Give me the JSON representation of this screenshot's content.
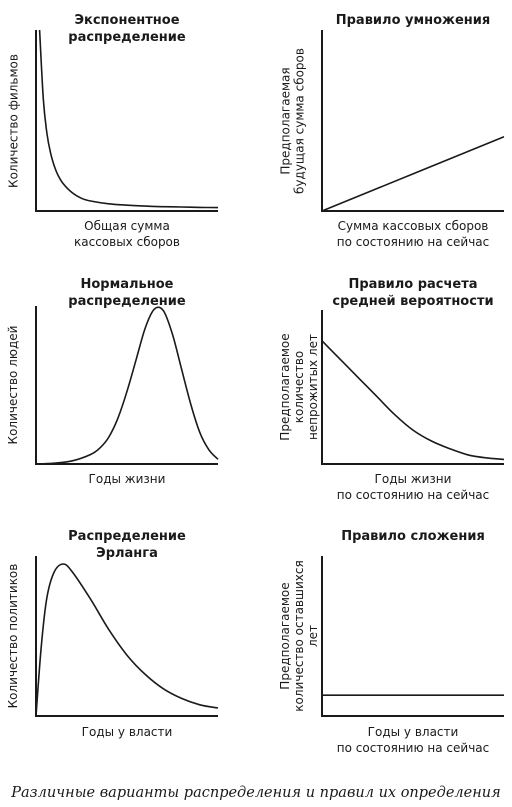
{
  "caption": "Различные варианты распределения и правил их определения",
  "chart_data": [
    {
      "type": "line",
      "title": "Экспонентное\nраспределение",
      "xlabel": "Общая сумма\nкассовых сборов",
      "ylabel": "Количество фильмов",
      "x": [
        0.02,
        0.04,
        0.06,
        0.08,
        0.1,
        0.12,
        0.15,
        0.2,
        0.25,
        0.3,
        0.4,
        0.5,
        0.6,
        0.7,
        0.8,
        0.9,
        1.0
      ],
      "y": [
        1.0,
        0.62,
        0.43,
        0.32,
        0.25,
        0.2,
        0.15,
        0.1,
        0.07,
        0.055,
        0.04,
        0.032,
        0.027,
        0.024,
        0.022,
        0.02,
        0.019
      ],
      "xlim": [
        0,
        1
      ],
      "ylim": [
        0,
        1
      ]
    },
    {
      "type": "line",
      "title": "Правило умножения",
      "xlabel": "Сумма кассовых сборов\nпо состоянию на сейчас",
      "ylabel": "Предполагаемая\nбудущая сумма сборов",
      "x": [
        0,
        1
      ],
      "y": [
        0.0,
        0.41
      ],
      "xlim": [
        0,
        1
      ],
      "ylim": [
        0,
        1
      ]
    },
    {
      "type": "line",
      "title": "Нормальное распределение",
      "xlabel": "Годы жизни",
      "ylabel": "Количество людей",
      "x": [
        0,
        0.1,
        0.2,
        0.3,
        0.35,
        0.4,
        0.45,
        0.5,
        0.55,
        0.6,
        0.65,
        0.7,
        0.75,
        0.8,
        0.85,
        0.9,
        0.95,
        1.0
      ],
      "y": [
        0.0,
        0.005,
        0.02,
        0.06,
        0.1,
        0.17,
        0.29,
        0.46,
        0.66,
        0.86,
        0.98,
        0.97,
        0.82,
        0.6,
        0.38,
        0.2,
        0.09,
        0.03
      ],
      "xlim": [
        0,
        1
      ],
      "ylim": [
        0,
        1
      ]
    },
    {
      "type": "line",
      "title": "Правило расчета\nсредней вероятности",
      "xlabel": "Годы жизни\nпо состоянию на сейчас",
      "ylabel": "Предполагаемое\nколичество непрожитых лет",
      "x": [
        0,
        0.1,
        0.2,
        0.3,
        0.4,
        0.5,
        0.6,
        0.7,
        0.8,
        0.9,
        1.0
      ],
      "y": [
        0.8,
        0.68,
        0.56,
        0.44,
        0.32,
        0.22,
        0.15,
        0.1,
        0.06,
        0.04,
        0.03
      ],
      "xlim": [
        0,
        1
      ],
      "ylim": [
        0,
        1
      ]
    },
    {
      "type": "line",
      "title": "Распределение Эрланга",
      "xlabel": "Годы у власти",
      "ylabel": "Количество политиков",
      "x": [
        0,
        0.03,
        0.06,
        0.1,
        0.15,
        0.2,
        0.3,
        0.4,
        0.5,
        0.6,
        0.7,
        0.8,
        0.9,
        1.0
      ],
      "y": [
        0.0,
        0.45,
        0.74,
        0.9,
        0.95,
        0.9,
        0.73,
        0.54,
        0.38,
        0.26,
        0.17,
        0.11,
        0.07,
        0.05
      ],
      "xlim": [
        0,
        1
      ],
      "ylim": [
        0,
        1
      ]
    },
    {
      "type": "line",
      "title": "Правило сложения",
      "xlabel": "Годы у власти\nпо состоянию на сейчас",
      "ylabel": "Предполагаемое\nколичество оставшихся лет",
      "x": [
        0,
        1
      ],
      "y": [
        0.13,
        0.13
      ],
      "xlim": [
        0,
        1
      ],
      "ylim": [
        0,
        1
      ]
    }
  ]
}
